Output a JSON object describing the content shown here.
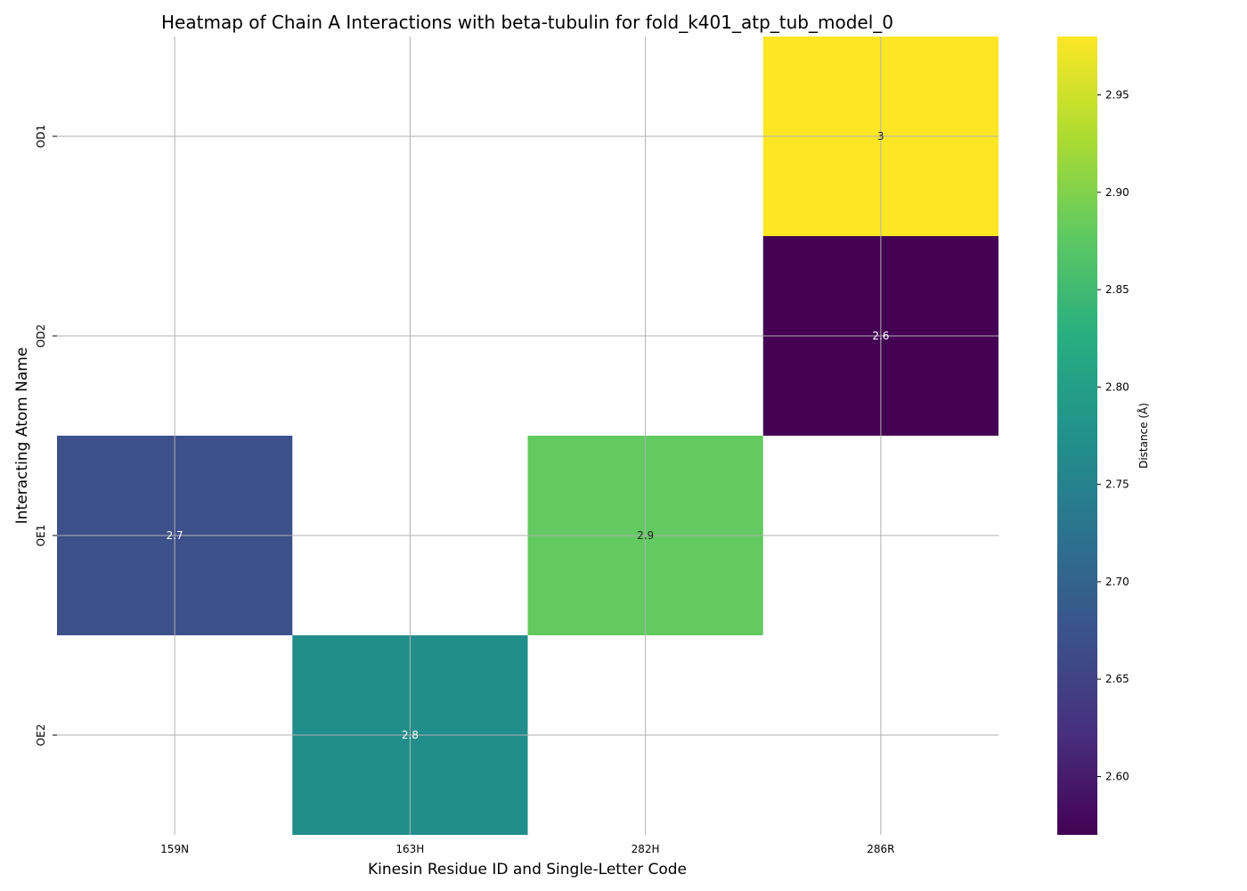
{
  "chart_data": {
    "type": "heatmap",
    "title": "Heatmap of Chain A Interactions with beta-tubulin for fold_k401_atp_tub_model_0",
    "xlabel": "Kinesin Residue ID and Single-Letter Code",
    "ylabel": "Interacting Atom Name",
    "x_categories": [
      "159N",
      "163H",
      "282H",
      "286R"
    ],
    "y_categories": [
      "OD1",
      "OD2",
      "OE1",
      "OE2"
    ],
    "values": [
      [
        null,
        null,
        null,
        2.98
      ],
      [
        null,
        null,
        null,
        2.57
      ],
      [
        2.67,
        null,
        2.88,
        null
      ],
      [
        null,
        2.77,
        null,
        null
      ]
    ],
    "cell_labels": [
      [
        null,
        null,
        null,
        "3"
      ],
      [
        null,
        null,
        null,
        "2.6"
      ],
      [
        "2.7",
        null,
        "2.9",
        null
      ],
      [
        null,
        "2.8",
        null,
        null
      ]
    ],
    "colorscale": "viridis",
    "colorbar": {
      "label": "Distance (Å)",
      "range": [
        2.57,
        2.98
      ],
      "ticks": [
        "2.60",
        "2.65",
        "2.70",
        "2.75",
        "2.80",
        "2.85",
        "2.90",
        "2.95"
      ]
    },
    "grid": true
  }
}
